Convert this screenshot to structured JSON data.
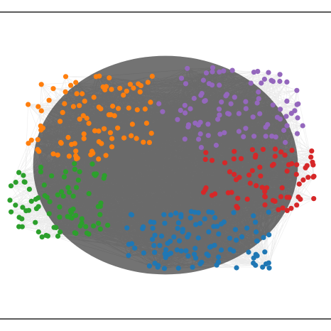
{
  "chart_data": {
    "type": "scatter",
    "description_kind": "network-graph",
    "title": "",
    "xlabel": "",
    "ylabel": "",
    "grid": false,
    "legend": "none",
    "edge_color": "#000000",
    "series": [
      {
        "name": "",
        "color": "#ff7f0e",
        "region": "upper-left",
        "center": [
          0.27,
          0.34
        ],
        "spread": [
          0.19,
          0.15
        ],
        "count": 95
      },
      {
        "name": "",
        "color": "#9467bd",
        "region": "upper-right",
        "center": [
          0.7,
          0.3
        ],
        "spread": [
          0.22,
          0.14
        ],
        "count": 95
      },
      {
        "name": "",
        "color": "#d62728",
        "region": "right",
        "center": [
          0.78,
          0.55
        ],
        "spread": [
          0.17,
          0.11
        ],
        "count": 75
      },
      {
        "name": "",
        "color": "#2ca02c",
        "region": "lower-left",
        "center": [
          0.18,
          0.62
        ],
        "spread": [
          0.15,
          0.13
        ],
        "count": 85
      },
      {
        "name": "",
        "color": "#1f77b4",
        "region": "bottom",
        "center": [
          0.6,
          0.76
        ],
        "spread": [
          0.22,
          0.1
        ],
        "count": 110
      }
    ]
  }
}
